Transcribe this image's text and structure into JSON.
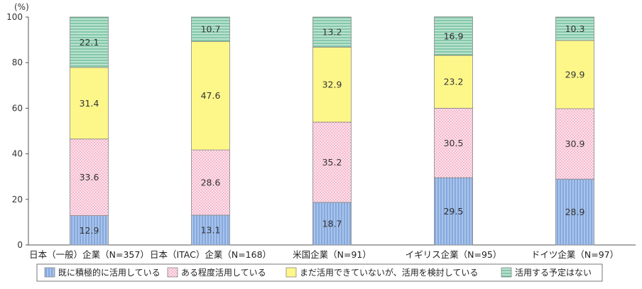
{
  "chart_data": {
    "type": "bar",
    "stacked": true,
    "unit_label": "(%)",
    "ylim": [
      0,
      100
    ],
    "yticks": [
      0,
      20,
      40,
      60,
      80,
      100
    ],
    "grid": false,
    "legend_position": "bottom",
    "categories": [
      "日本（一般）企業（N=357）",
      "日本（ITAC）企業（N=168）",
      "米国企業（N=91）",
      "イギリス企業（N=95）",
      "ドイツ企業（N=97）"
    ],
    "series": [
      {
        "name": "既に積極的に活用している",
        "values": [
          12.9,
          13.1,
          18.7,
          29.5,
          28.9
        ],
        "color": "#a9c4ec",
        "pattern": "vertical-lines",
        "pattern_color": "#5b86c9"
      },
      {
        "name": "ある程度活用している",
        "values": [
          33.6,
          28.6,
          35.2,
          30.5,
          30.9
        ],
        "color": "#fde3ec",
        "pattern": "dots",
        "pattern_color": "#e87aa0"
      },
      {
        "name": "まだ活用できていないが、活用を検討している",
        "values": [
          31.4,
          47.6,
          32.9,
          23.2,
          29.9
        ],
        "color": "#fdf78a",
        "pattern": "solid",
        "pattern_color": "#fdf78a"
      },
      {
        "name": "活用する予定はない",
        "values": [
          22.1,
          10.7,
          13.2,
          16.9,
          10.3
        ],
        "color": "#b8e3cf",
        "pattern": "horizontal-lines",
        "pattern_color": "#4aa57e"
      }
    ]
  }
}
